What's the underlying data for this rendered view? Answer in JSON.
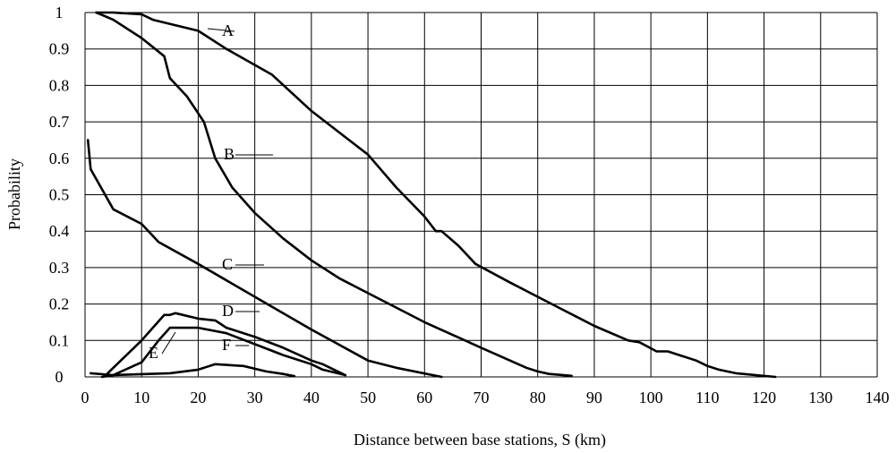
{
  "chart_data": {
    "type": "line",
    "title": "",
    "xlabel": "Distance between base stations, S (km)",
    "ylabel": "Probability",
    "xlim": [
      0,
      140
    ],
    "ylim": [
      0,
      1
    ],
    "x_ticks": [
      0,
      10,
      20,
      30,
      40,
      50,
      60,
      70,
      80,
      90,
      100,
      110,
      120,
      130,
      140
    ],
    "y_ticks": [
      "0",
      "0.1",
      "0.2",
      "0.3",
      "0.4",
      "0.5",
      "0.6",
      "0.7",
      "0.8",
      "0.9",
      "1"
    ],
    "grid": true,
    "legend": "none",
    "series": [
      {
        "name": "A",
        "x": [
          2,
          5,
          10,
          12,
          20,
          25,
          33,
          40,
          50,
          55,
          60,
          62,
          63,
          66,
          69,
          75,
          80,
          90,
          96,
          98,
          101,
          103,
          105,
          108,
          110,
          112,
          115,
          122
        ],
        "y": [
          1,
          1,
          0.995,
          0.98,
          0.95,
          0.9,
          0.83,
          0.73,
          0.61,
          0.52,
          0.44,
          0.4,
          0.4,
          0.36,
          0.31,
          0.26,
          0.22,
          0.14,
          0.1,
          0.095,
          0.07,
          0.07,
          0.06,
          0.045,
          0.03,
          0.02,
          0.01,
          0.0
        ]
      },
      {
        "name": "B",
        "x": [
          2,
          5,
          10,
          14,
          15,
          18,
          21,
          22,
          23,
          26,
          30,
          35,
          40,
          45,
          50,
          60,
          70,
          78,
          80,
          82,
          86
        ],
        "y": [
          1,
          0.98,
          0.93,
          0.88,
          0.82,
          0.77,
          0.7,
          0.65,
          0.6,
          0.52,
          0.45,
          0.38,
          0.32,
          0.27,
          0.23,
          0.15,
          0.08,
          0.025,
          0.015,
          0.008,
          0.003
        ]
      },
      {
        "name": "C",
        "x": [
          0.5,
          1,
          5,
          10,
          13,
          20,
          30,
          40,
          50,
          55,
          63
        ],
        "y": [
          0.65,
          0.57,
          0.46,
          0.42,
          0.37,
          0.31,
          0.22,
          0.13,
          0.045,
          0.025,
          0.0
        ]
      },
      {
        "name": "D",
        "x": [
          4,
          10,
          14,
          15,
          16,
          20,
          23,
          25,
          30,
          35,
          40,
          42,
          46
        ],
        "y": [
          0.01,
          0.1,
          0.17,
          0.17,
          0.175,
          0.16,
          0.155,
          0.135,
          0.11,
          0.08,
          0.045,
          0.035,
          0.005
        ]
      },
      {
        "name": "E",
        "x": [
          3,
          5,
          10,
          13,
          15,
          20,
          25,
          30,
          35,
          40,
          42,
          46
        ],
        "y": [
          0,
          0.005,
          0.04,
          0.1,
          0.135,
          0.135,
          0.12,
          0.09,
          0.06,
          0.035,
          0.02,
          0.005
        ]
      },
      {
        "name": "F",
        "x": [
          1,
          5,
          15,
          20,
          22,
          23,
          28,
          32,
          35,
          37
        ],
        "y": [
          0.01,
          0.005,
          0.01,
          0.02,
          0.03,
          0.035,
          0.03,
          0.015,
          0.008,
          0.002
        ]
      }
    ],
    "annotations": [
      "A",
      "B",
      "C",
      "D",
      "E",
      "F"
    ]
  }
}
